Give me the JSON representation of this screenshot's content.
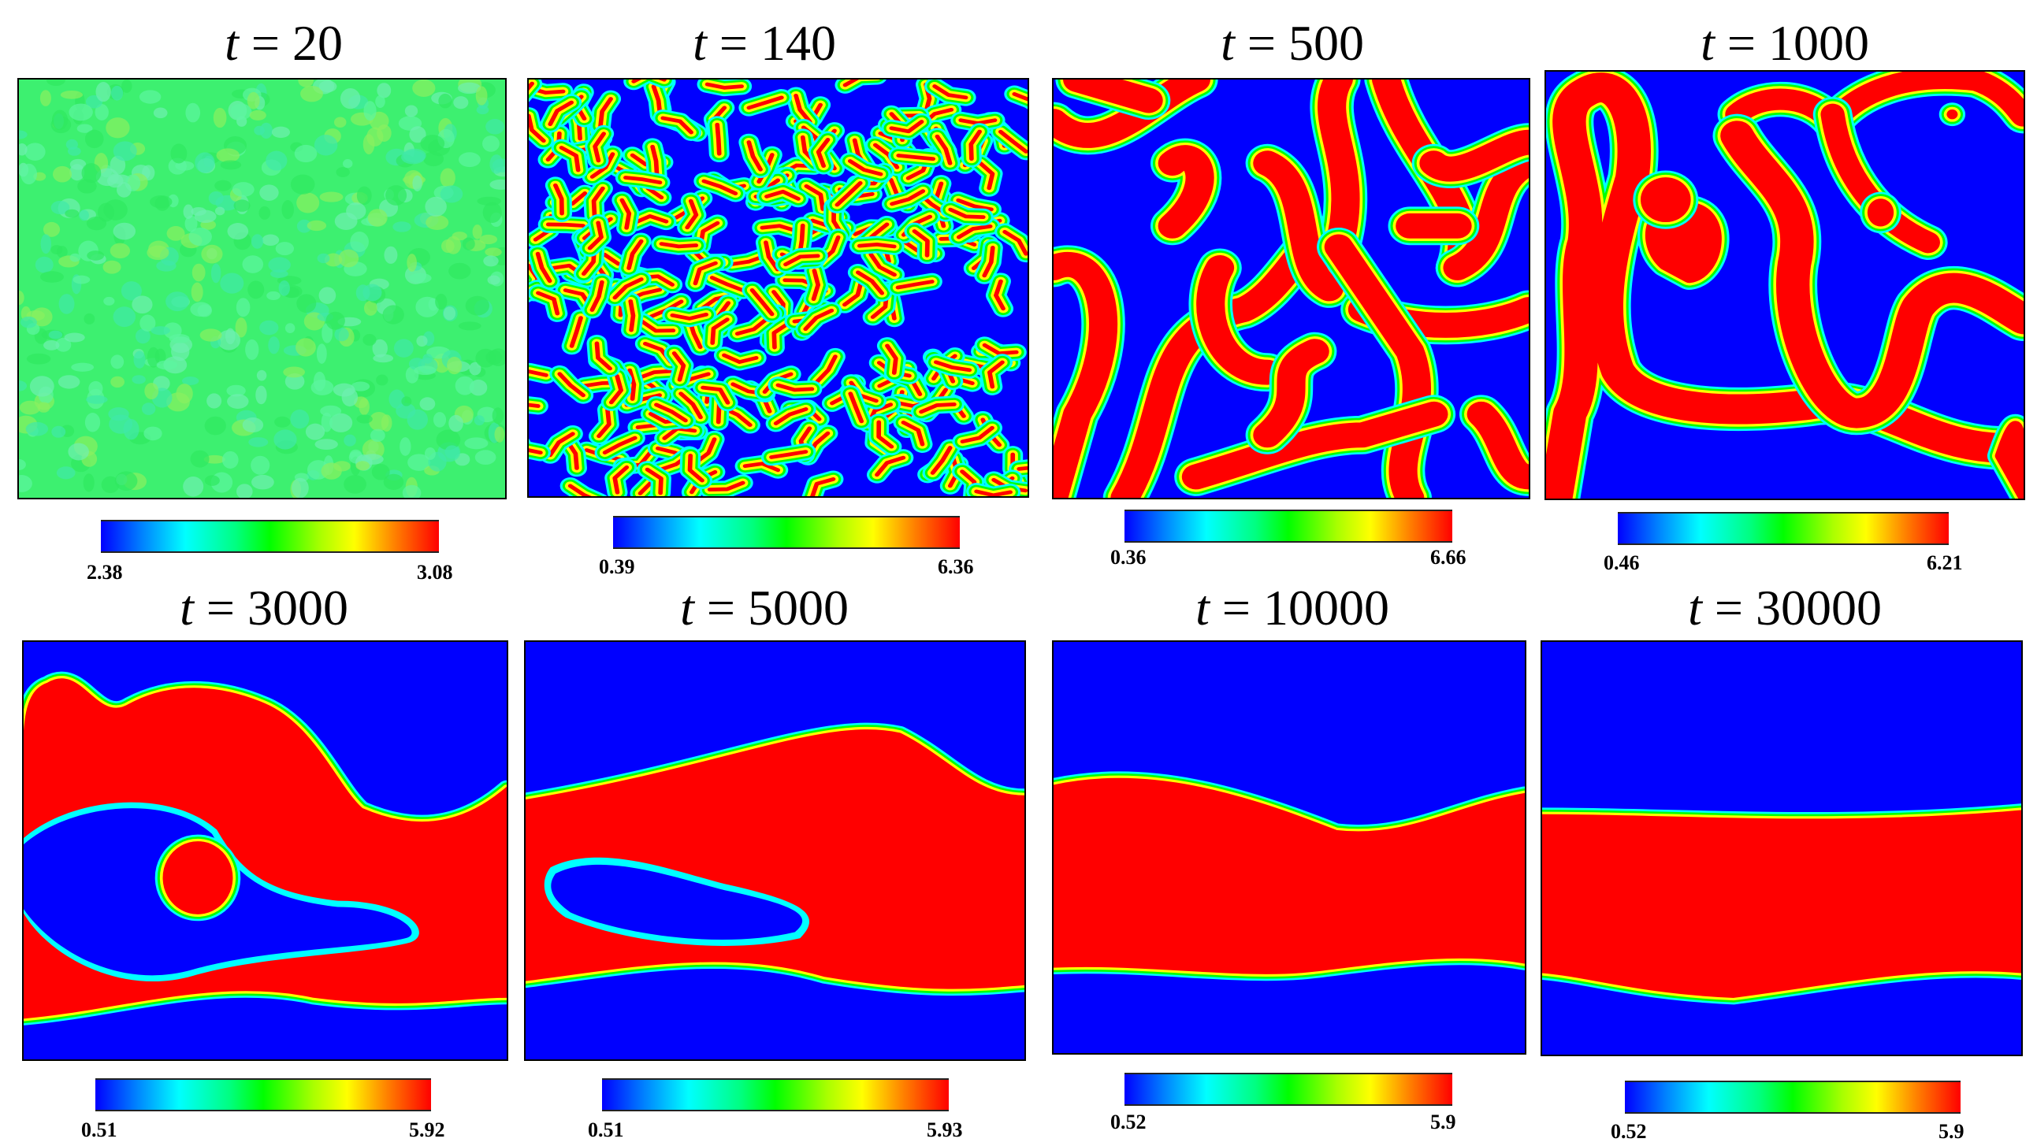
{
  "colormap": [
    "#0000ff",
    "#00ffff",
    "#00ff00",
    "#ffff00",
    "#ff0000"
  ],
  "panels": [
    {
      "title_var": "t",
      "title_eq": "= 20",
      "cbar_min": "2.38",
      "cbar_max": "3.08"
    },
    {
      "title_var": "t",
      "title_eq": "= 140",
      "cbar_min": "0.39",
      "cbar_max": "6.36"
    },
    {
      "title_var": "t",
      "title_eq": "= 500",
      "cbar_min": "0.36",
      "cbar_max": "6.66"
    },
    {
      "title_var": "t",
      "title_eq": "= 1000",
      "cbar_min": "0.46",
      "cbar_max": "6.21"
    },
    {
      "title_var": "t",
      "title_eq": "= 3000",
      "cbar_min": "0.51",
      "cbar_max": "5.92"
    },
    {
      "title_var": "t",
      "title_eq": "= 5000",
      "cbar_min": "0.51",
      "cbar_max": "5.93"
    },
    {
      "title_var": "t",
      "title_eq": "= 10000",
      "cbar_min": "0.52",
      "cbar_max": "5.9"
    },
    {
      "title_var": "t",
      "title_eq": "= 30000",
      "cbar_min": "0.52",
      "cbar_max": "5.9"
    }
  ]
}
